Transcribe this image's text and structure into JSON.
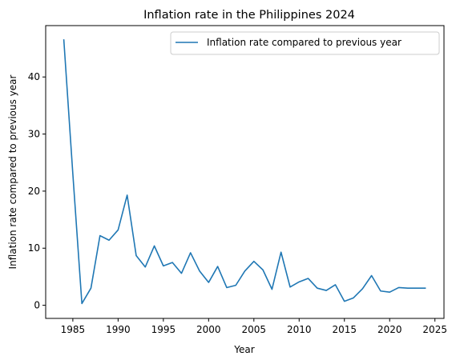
{
  "chart_data": {
    "type": "line",
    "title": "Inflation rate in the Philippines 2024",
    "xlabel": "Year",
    "ylabel": "Inflation rate compared to previous year",
    "xlim": [
      1982,
      2026
    ],
    "ylim": [
      -2.3,
      49
    ],
    "x_ticks": [
      1985,
      1990,
      1995,
      2000,
      2005,
      2010,
      2015,
      2020,
      2025
    ],
    "y_ticks": [
      0,
      10,
      20,
      30,
      40
    ],
    "grid": false,
    "legend_position": "top-right",
    "series": [
      {
        "name": "Inflation rate compared to previous year",
        "color": "#1f77b4",
        "x": [
          1984,
          1985,
          1986,
          1987,
          1988,
          1989,
          1990,
          1991,
          1992,
          1993,
          1994,
          1995,
          1996,
          1997,
          1998,
          1999,
          2000,
          2001,
          2002,
          2003,
          2004,
          2005,
          2006,
          2007,
          2008,
          2009,
          2010,
          2011,
          2012,
          2013,
          2014,
          2015,
          2016,
          2017,
          2018,
          2019,
          2020,
          2021,
          2022,
          2023,
          2024
        ],
        "values": [
          46.6,
          23.0,
          0.3,
          3.0,
          12.2,
          11.4,
          13.2,
          19.3,
          8.7,
          6.7,
          10.4,
          6.9,
          7.5,
          5.6,
          9.2,
          6.0,
          4.0,
          6.8,
          3.1,
          3.5,
          6.0,
          7.7,
          6.2,
          2.8,
          9.3,
          3.2,
          4.1,
          4.7,
          3.0,
          2.6,
          3.6,
          0.7,
          1.3,
          2.9,
          5.2,
          2.5,
          2.3,
          3.1,
          3.0,
          3.0,
          3.0
        ]
      }
    ]
  }
}
